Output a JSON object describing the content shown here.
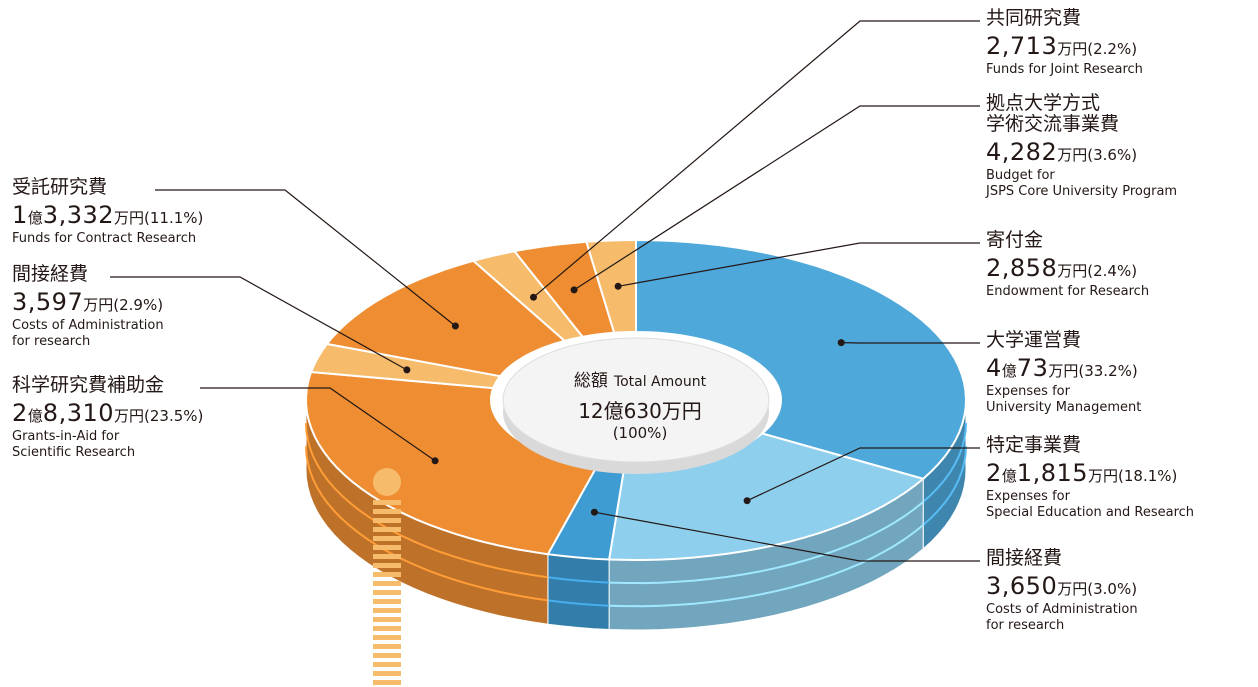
{
  "chart_data": {
    "type": "pie",
    "style": "3d-donut",
    "total": {
      "title": "総額",
      "title_en": "Total Amount",
      "amount": "12億630万円",
      "percent": "(100%)"
    },
    "slices": [
      {
        "name": "大学運営費",
        "name_en": [
          "Expenses for",
          "University Management"
        ],
        "amount_prefix": "4",
        "amount_mid": "億",
        "amount_main": "73",
        "unit": "万円",
        "percent_text": "(33.2%)",
        "value": 33.2,
        "color": "#4FA8DA"
      },
      {
        "name": "特定事業費",
        "name_en": [
          "Expenses for",
          "Special Education and Research"
        ],
        "amount_prefix": "2",
        "amount_mid": "億",
        "amount_main": "1,815",
        "unit": "万円",
        "percent_text": "(18.1%)",
        "value": 18.1,
        "color": "#8ECFEE"
      },
      {
        "name": "間接経費",
        "name_en": [
          "Costs of Administration",
          "for research"
        ],
        "amount_prefix": "",
        "amount_mid": "",
        "amount_main": "3,650",
        "unit": "万円",
        "percent_text": "(3.0%)",
        "value": 3.0,
        "color": "#3F9CD3"
      },
      {
        "name": "科学研究費補助金",
        "name_en": [
          "Grants-in-Aid for",
          "Scientific Research"
        ],
        "amount_prefix": "2",
        "amount_mid": "億",
        "amount_main": "8,310",
        "unit": "万円",
        "percent_text": "(23.5%)",
        "value": 23.5,
        "color": "#EE8D32"
      },
      {
        "name": "間接経費",
        "name_en": [
          "Costs of Administration",
          "for research"
        ],
        "amount_prefix": "",
        "amount_mid": "",
        "amount_main": "3,597",
        "unit": "万円",
        "percent_text": "(2.9%)",
        "value": 2.9,
        "color": "#F6BC6C"
      },
      {
        "name": "受託研究費",
        "name_en": [
          "Funds for Contract Research"
        ],
        "amount_prefix": "1",
        "amount_mid": "億",
        "amount_main": "3,332",
        "unit": "万円",
        "percent_text": "(11.1%)",
        "value": 11.1,
        "color": "#EE8D32"
      },
      {
        "name": "共同研究費",
        "name_en": [
          "Funds for Joint Research"
        ],
        "amount_prefix": "",
        "amount_mid": "",
        "amount_main": "2,713",
        "unit": "万円",
        "percent_text": "(2.2%)",
        "value": 2.2,
        "color": "#F6BC6C"
      },
      {
        "name": "拠点大学方式\n学術交流事業費",
        "name_en": [
          "Budget for",
          "JSPS Core University Program"
        ],
        "amount_prefix": "",
        "amount_mid": "",
        "amount_main": "4,282",
        "unit": "万円",
        "percent_text": "(3.6%)",
        "value": 3.6,
        "color": "#EE8D32"
      },
      {
        "name": "寄付金",
        "name_en": [
          "Endowment for Research"
        ],
        "amount_prefix": "",
        "amount_mid": "",
        "amount_main": "2,858",
        "unit": "万円",
        "percent_text": "(2.4%)",
        "value": 2.4,
        "color": "#F6BC6C"
      }
    ]
  }
}
